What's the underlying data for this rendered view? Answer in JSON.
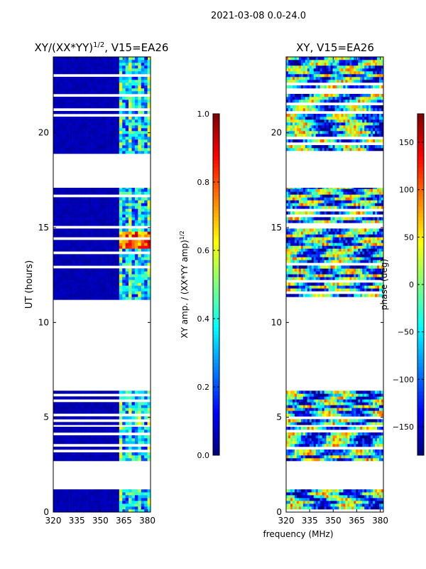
{
  "suptitle": "2021-03-08 0.0-24.0",
  "chart_data": [
    {
      "type": "heatmap",
      "title": "XY/(XX*YY)^1/2, V15=EA26",
      "title_main": "XY/(XX*YY)",
      "title_exp": "1/2",
      "title_tail": ", V15=EA26",
      "xlabel": "",
      "ylabel": "UT (hours)",
      "xlim": [
        320,
        382
      ],
      "ylim": [
        0,
        24
      ],
      "xticks": [
        320,
        335,
        350,
        365,
        380
      ],
      "yticks": [
        0,
        5,
        10,
        15,
        20
      ],
      "colorbar": {
        "label": "XY amp. / (XX*YY amp)^1/2",
        "label_main": "XY amp. / (XX*YY amp)",
        "label_exp": "1/2",
        "range": [
          0.0,
          1.0
        ],
        "ticks": [
          "0.0",
          "0.2",
          "0.4",
          "0.6",
          "0.8",
          "1.0"
        ],
        "colormap": "jet"
      },
      "data_blocks": [
        [
          0.0,
          1.2
        ],
        [
          2.7,
          4.5
        ],
        [
          4.6,
          6.4
        ],
        [
          11.2,
          17.1
        ],
        [
          18.9,
          24.0
        ]
      ],
      "feature_range_mhz": [
        362,
        382
      ],
      "low_value_range_mhz": [
        320,
        361
      ],
      "typical_values": {
        "low_band": 0.05,
        "high_band": 0.3
      }
    },
    {
      "type": "heatmap",
      "title": "XY, V15=EA26",
      "xlabel": "",
      "ylabel": "",
      "xlim": [
        320,
        382
      ],
      "ylim": [
        0,
        24
      ],
      "xticks": [
        320,
        335,
        350,
        365,
        380
      ],
      "yticks": [
        0,
        5,
        10,
        15,
        20
      ],
      "colorbar": {
        "label": "phase (deg)",
        "range": [
          -180,
          180
        ],
        "ticks": [
          "−150",
          "−100",
          "−50",
          "0",
          "50",
          "100",
          "150"
        ],
        "tick_values": [
          -150,
          -100,
          -50,
          0,
          50,
          100,
          150
        ],
        "colormap": "jet"
      },
      "data_blocks": [
        [
          0.0,
          1.2
        ],
        [
          2.7,
          4.5
        ],
        [
          4.6,
          6.4
        ],
        [
          11.2,
          17.1
        ],
        [
          18.9,
          24.0
        ]
      ]
    }
  ],
  "shared_xlabel": "frequency (MHz)"
}
